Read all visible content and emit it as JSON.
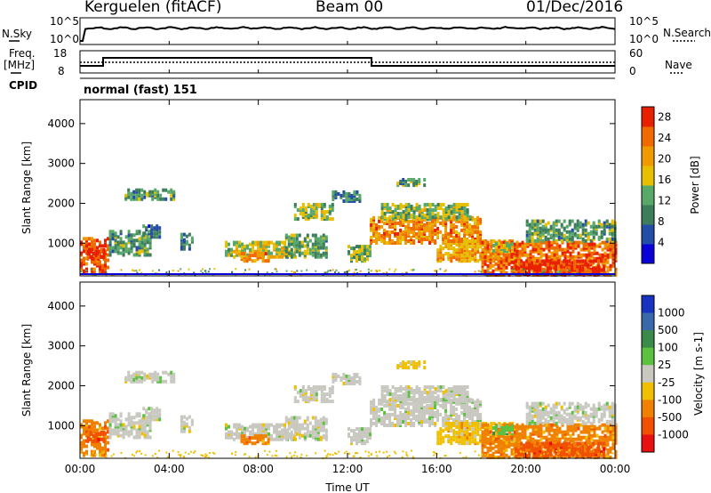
{
  "header": {
    "station": "Kerguelen (fitACF)",
    "beam": "Beam 00",
    "date": "01/Dec/2016"
  },
  "noise_panel": {
    "left_label": "N.Sky",
    "right_label": "N.Search",
    "ticks": [
      "10^5",
      "10^0"
    ]
  },
  "freq_panel": {
    "left_label_line1": "Freq.",
    "left_label_line2": "[MHz]",
    "left_ticks": [
      "18",
      "8"
    ],
    "right_ticks": [
      "60",
      "0"
    ],
    "right_label": "Nave",
    "cpid_label": "CPID",
    "mode_text": "normal (fast) 151"
  },
  "chart_data": [
    {
      "type": "heatmap",
      "title": "",
      "xlabel": "",
      "ylabel": "Slant Range [km]",
      "x_ticks": [
        "00:00",
        "04:00",
        "08:00",
        "12:00",
        "16:00",
        "20:00",
        "00:00"
      ],
      "y_ticks": [
        1000,
        2000,
        3000,
        4000
      ],
      "xlim_hours": [
        0,
        24
      ],
      "ylim_km": [
        180,
        4600
      ],
      "colorbar": {
        "label": "Power [dB]",
        "ticks": [
          4,
          8,
          12,
          16,
          20,
          24,
          28
        ],
        "range": [
          0,
          30
        ],
        "colors": [
          "#0a00d8",
          "#244da8",
          "#3d7d5c",
          "#58a86a",
          "#e6c000",
          "#ef9a00",
          "#ef6a00",
          "#e82000"
        ]
      }
    },
    {
      "type": "heatmap",
      "title": "",
      "xlabel": "Time UT",
      "ylabel": "Slant Range [km]",
      "x_ticks": [
        "00:00",
        "04:00",
        "08:00",
        "12:00",
        "16:00",
        "20:00",
        "00:00"
      ],
      "y_ticks": [
        1000,
        2000,
        3000,
        4000
      ],
      "xlim_hours": [
        0,
        24
      ],
      "ylim_km": [
        180,
        4600
      ],
      "colorbar": {
        "label": "Velocity [m s-1]",
        "ticks": [
          "1000",
          "500",
          "100",
          "25",
          "-25",
          "-100",
          "-500",
          "-1000"
        ],
        "colors": [
          "#1733c0",
          "#3a68a8",
          "#3a8a4a",
          "#5cc040",
          "#c8c8c0",
          "#f0c000",
          "#f08000",
          "#f05000",
          "#e81010"
        ]
      }
    }
  ]
}
